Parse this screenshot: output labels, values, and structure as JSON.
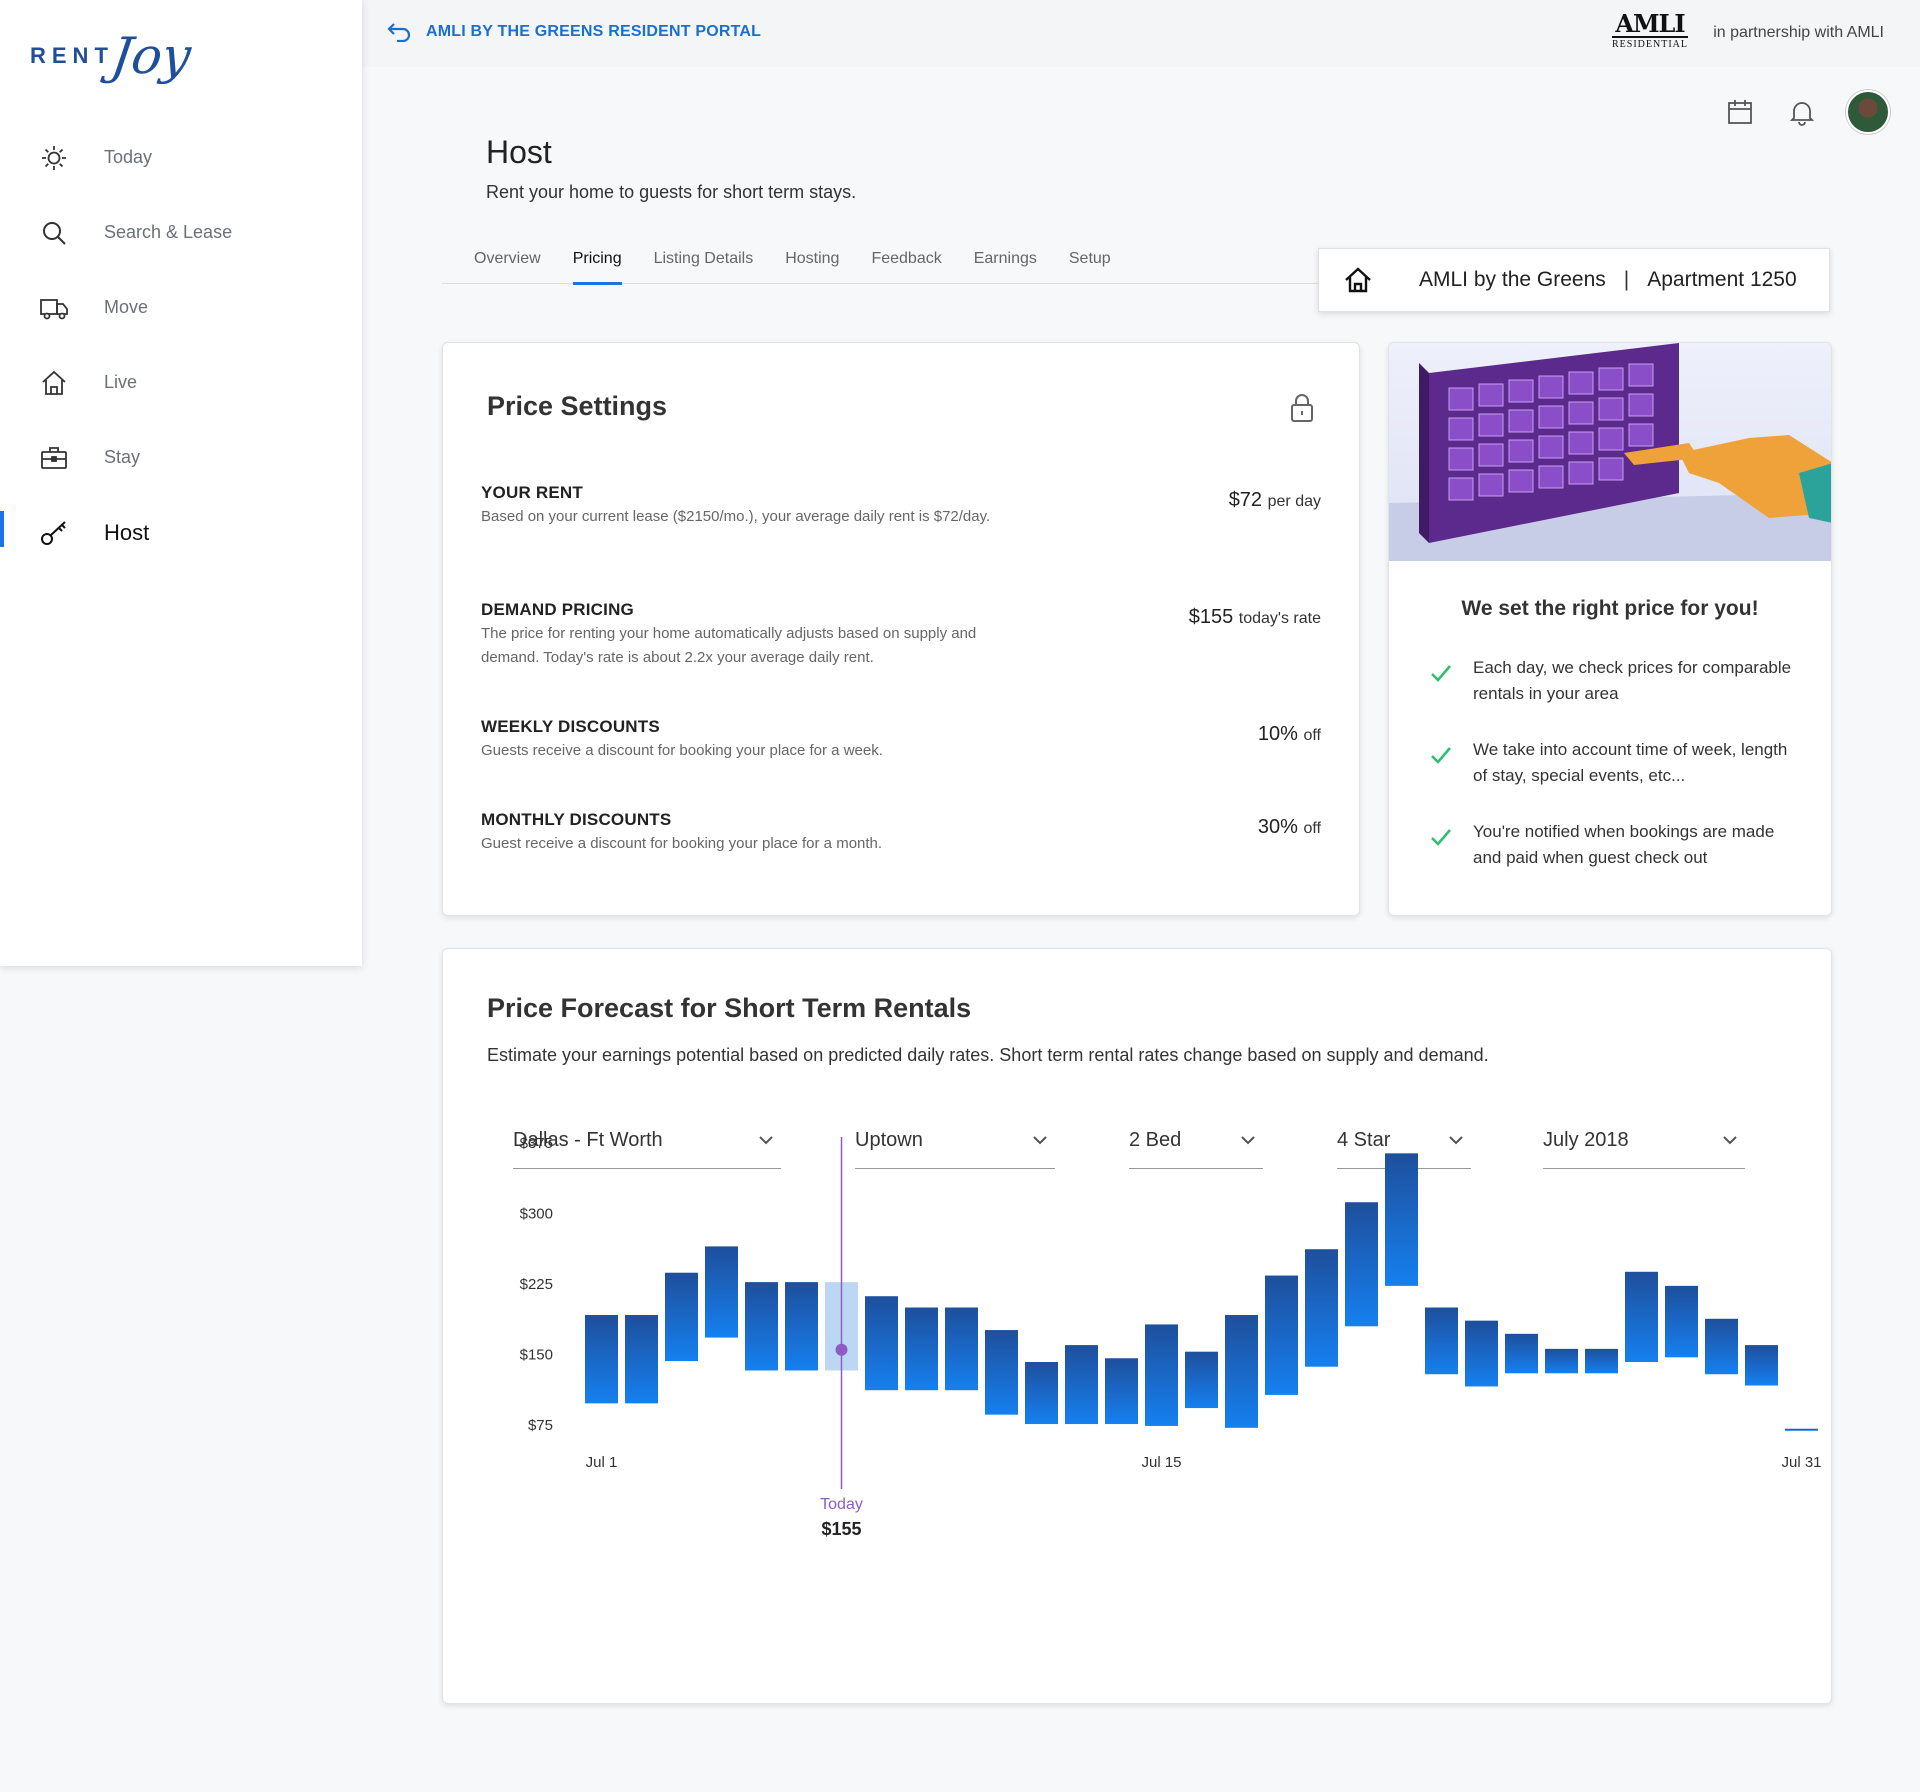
{
  "brand": {
    "rent": "RENT",
    "joy": "Joy"
  },
  "sidebar": {
    "items": [
      {
        "label": "Today",
        "icon": "sun-icon"
      },
      {
        "label": "Search & Lease",
        "icon": "search-icon"
      },
      {
        "label": "Move",
        "icon": "truck-icon"
      },
      {
        "label": "Live",
        "icon": "home-icon"
      },
      {
        "label": "Stay",
        "icon": "suitcase-icon"
      },
      {
        "label": "Host",
        "icon": "key-icon",
        "active": true
      }
    ]
  },
  "topbar": {
    "portal_link": "AMLI BY THE GREENS RESIDENT PORTAL",
    "partner_logo_big": "AMLI",
    "partner_logo_small": "RESIDENTIAL",
    "partner_text": "in partnership with AMLI"
  },
  "header": {
    "title": "Host",
    "subtitle": "Rent your home to guests for short term stays.",
    "icons": [
      "calendar-icon",
      "bell-icon"
    ]
  },
  "tabs": [
    {
      "label": "Overview"
    },
    {
      "label": "Pricing",
      "active": true
    },
    {
      "label": "Listing Details"
    },
    {
      "label": "Hosting"
    },
    {
      "label": "Feedback"
    },
    {
      "label": "Earnings"
    },
    {
      "label": "Setup"
    }
  ],
  "location": {
    "property": "AMLI by the Greens",
    "separator": "|",
    "unit": "Apartment 1250"
  },
  "price_settings": {
    "title": "Price Settings",
    "items": [
      {
        "heading": "YOUR RENT",
        "desc": "Based on your current lease ($2150/mo.), your average daily rent is $72/day.",
        "value": "$72",
        "unit": "per day"
      },
      {
        "heading": "DEMAND PRICING",
        "desc": "The price for renting your home automatically adjusts based on supply and demand. Today's rate is about 2.2x your average daily rent.",
        "value": "$155",
        "unit": "today's rate"
      },
      {
        "heading": "WEEKLY DISCOUNTS",
        "desc": "Guests receive a discount for booking your place for a week.",
        "value": "10%",
        "unit": "off"
      },
      {
        "heading": "MONTHLY DISCOUNTS",
        "desc": "Guest receive a discount for booking your place for a month.",
        "value": "30%",
        "unit": "off"
      }
    ]
  },
  "info": {
    "title": "We set the right price for you!",
    "benefits": [
      "Each day, we check prices for comparable rentals in your area",
      "We take into account time of week, length of stay, special events, etc...",
      "You're notified when bookings are made and paid when guest check out"
    ]
  },
  "forecast": {
    "title": "Price Forecast for Short Term Rentals",
    "subtitle": "Estimate your earnings potential based on predicted daily rates. Short term rental rates change based on supply and demand.",
    "filters": [
      {
        "value": "Dallas - Ft Worth"
      },
      {
        "value": "Uptown"
      },
      {
        "value": "2 Bed"
      },
      {
        "value": "4 Star"
      },
      {
        "value": "July 2018"
      }
    ],
    "today_label": "Today",
    "today_value": "$155"
  },
  "chart_data": {
    "type": "bar",
    "subtype": "floating-range",
    "y_ticks": [
      "$375",
      "$300",
      "$225",
      "$150",
      "$75"
    ],
    "y_tick_values": [
      375,
      300,
      225,
      150,
      75
    ],
    "x_tick_labels": [
      {
        "label": "Jul 1",
        "day": 1
      },
      {
        "label": "Jul 15",
        "day": 15
      },
      {
        "label": "Jul 31",
        "day": 31
      }
    ],
    "days": [
      1,
      2,
      3,
      4,
      5,
      6,
      7,
      8,
      9,
      10,
      11,
      12,
      13,
      14,
      15,
      16,
      17,
      18,
      19,
      20,
      21,
      22,
      23,
      24,
      25,
      26,
      27,
      28,
      29,
      30,
      31
    ],
    "low": [
      98,
      98,
      143,
      168,
      133,
      133,
      133,
      112,
      112,
      112,
      86,
      76,
      76,
      76,
      74,
      93,
      72,
      107,
      137,
      180,
      223,
      129,
      116,
      130,
      130,
      130,
      142,
      147,
      129,
      117,
      71
    ],
    "high": [
      192,
      192,
      237,
      265,
      227,
      227,
      227,
      212,
      200,
      200,
      176,
      142,
      160,
      146,
      182,
      153,
      192,
      234,
      262,
      312,
      364,
      200,
      186,
      172,
      156,
      156,
      238,
      223,
      188,
      160,
      71
    ],
    "today_index": 6,
    "today_value": 155,
    "colors": {
      "bar_top": "#1e4f9c",
      "bar_bottom": "#1580f0",
      "today_bar": "#bcd7f4",
      "today_line": "#8e5cc4"
    },
    "grid": false
  }
}
